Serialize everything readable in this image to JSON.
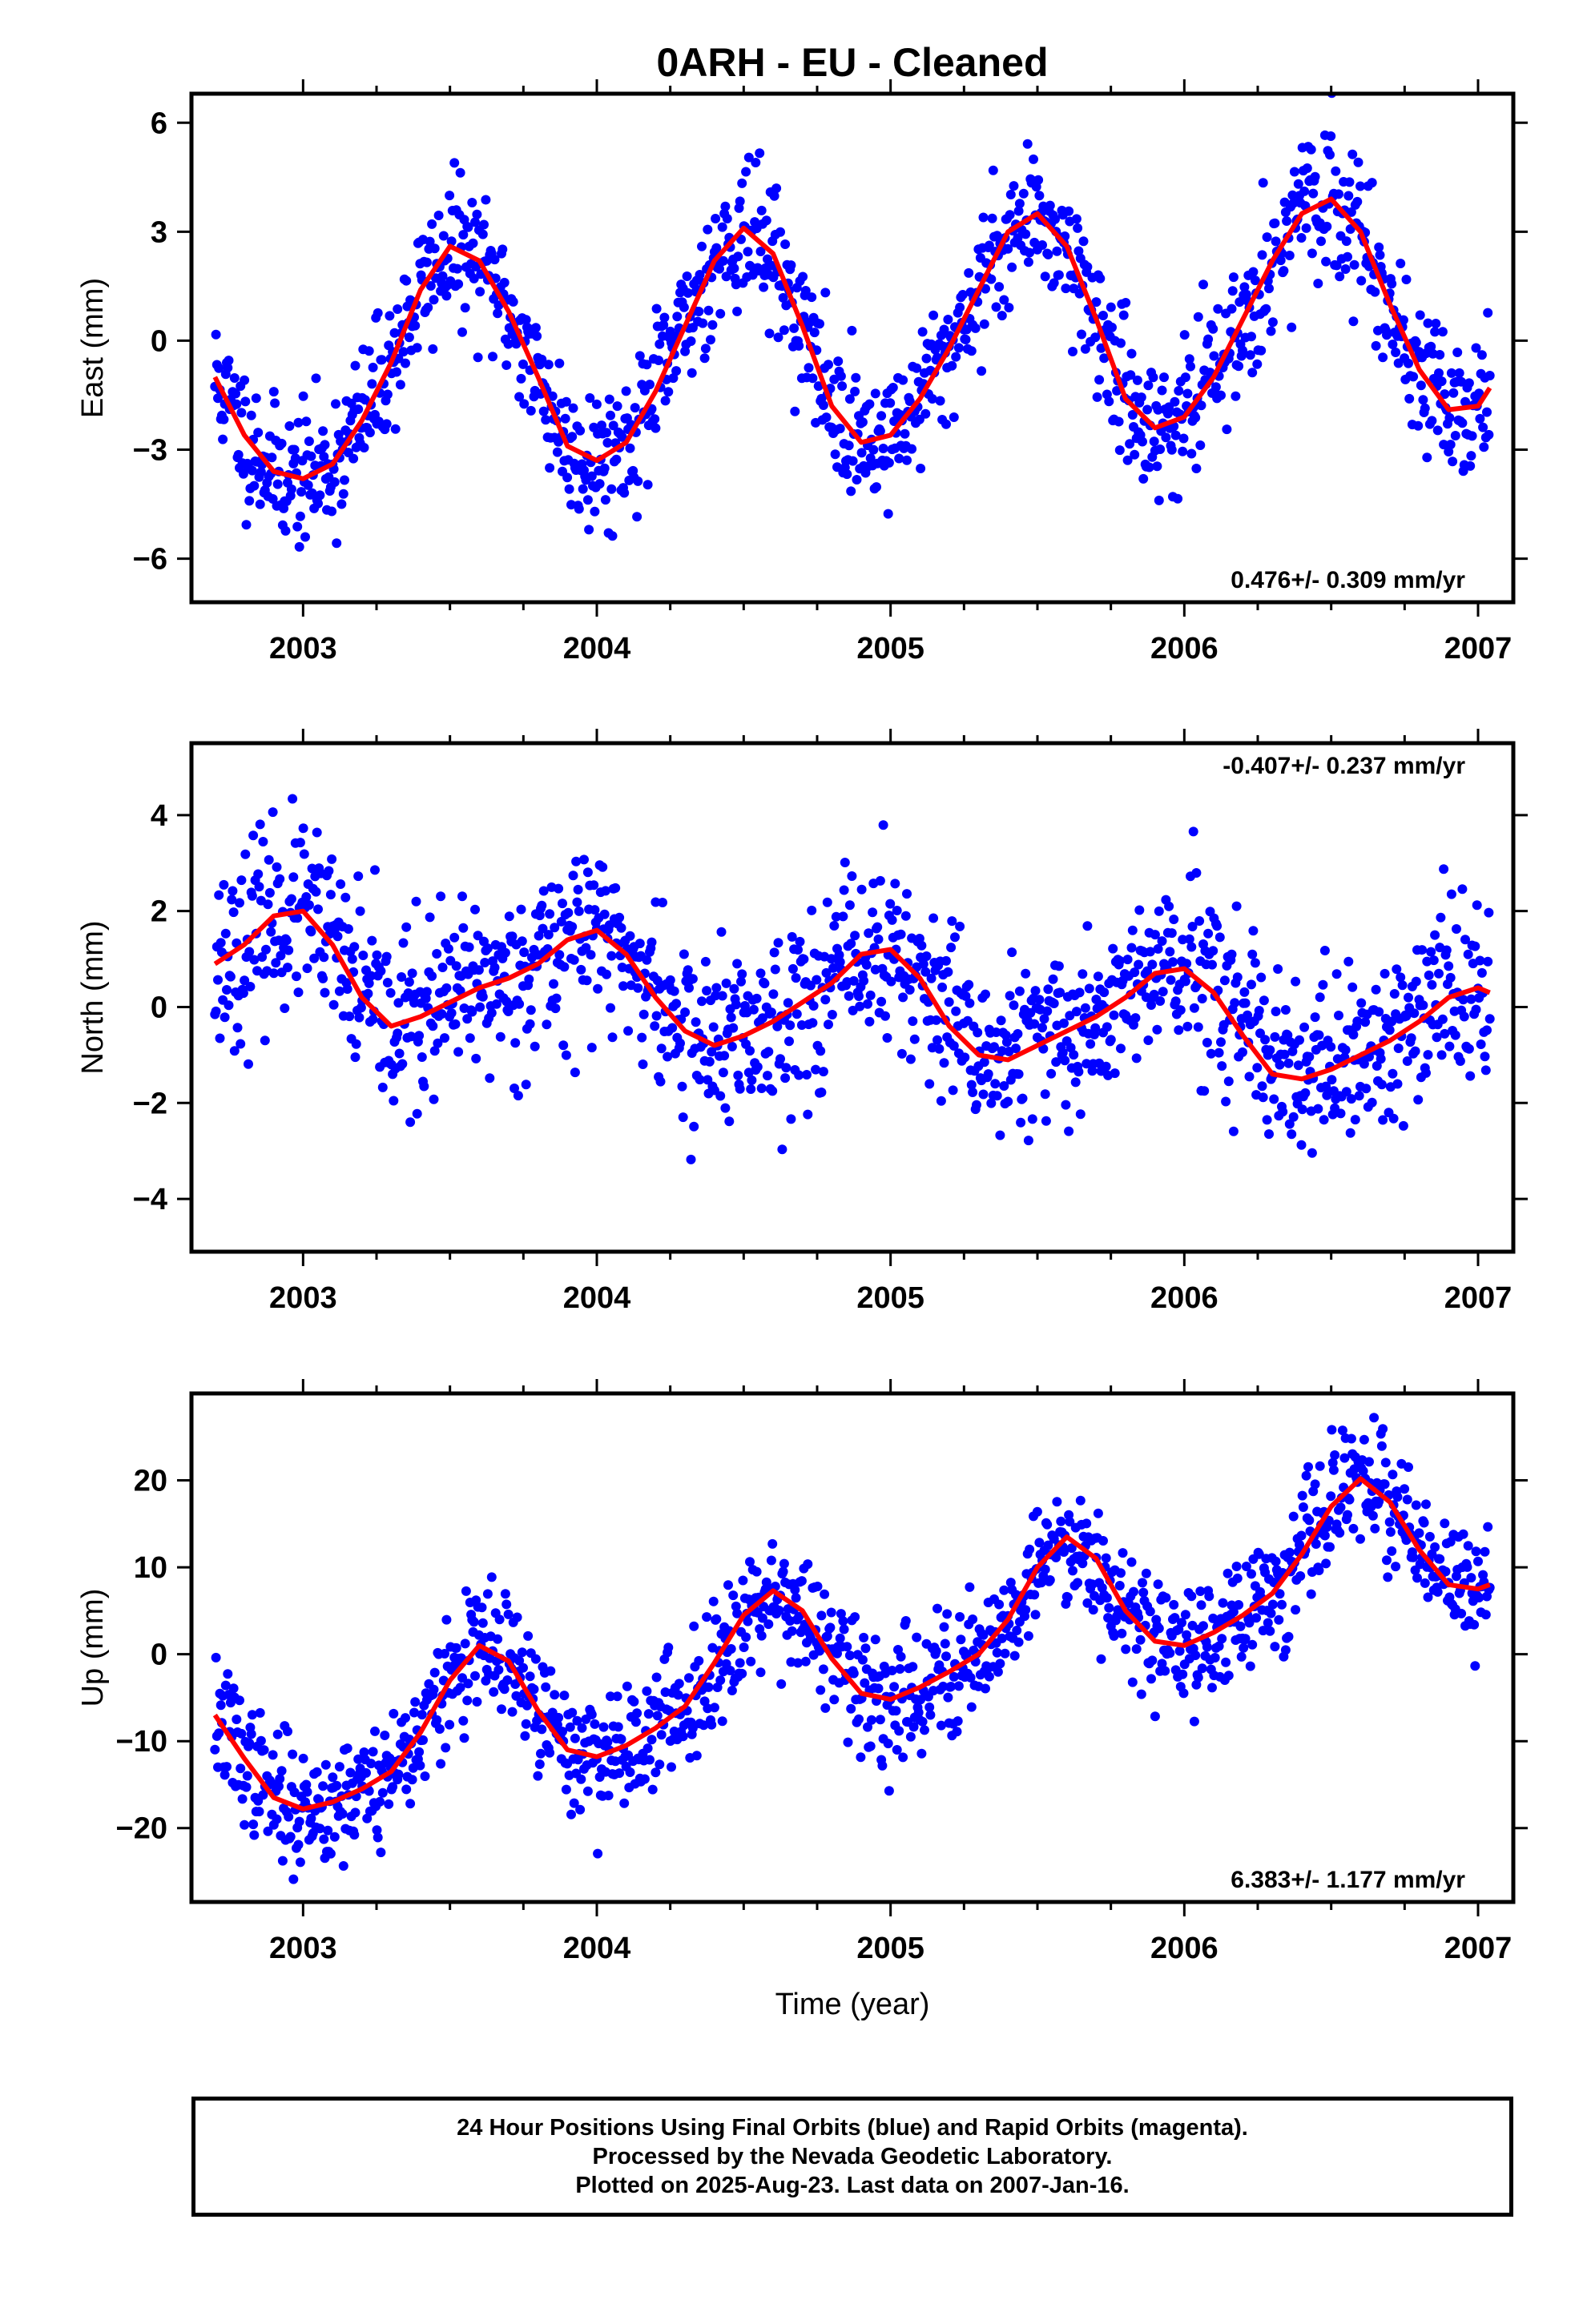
{
  "title": "0ARH  - EU - Cleaned",
  "footer": {
    "line1": "24 Hour Positions Using Final Orbits (blue) and Rapid Orbits (magenta).",
    "line2": "Processed by the Nevada Geodetic Laboratory.",
    "line3": "Plotted on 2025-Aug-23. Last data on 2007-Jan-16."
  },
  "colors": {
    "points": "#0000ff",
    "fit": "#ff0000",
    "frame": "#000000"
  },
  "chart_data": [
    {
      "type": "scatter",
      "ylabel": "East (mm)",
      "xlabel": "",
      "rate_label": "0.476+/- 0.309 mm/yr",
      "rate_position": "bottom-right",
      "xlim": [
        2002.62,
        2007.12
      ],
      "ylim": [
        -7.2,
        6.8
      ],
      "x_ticks": [
        2003,
        2004,
        2005,
        2006,
        2007
      ],
      "y_ticks": [
        6,
        3,
        0,
        -3,
        -6
      ],
      "y_tick_labels": [
        "6",
        "3",
        "0",
        "−3",
        "−6"
      ],
      "grid": false,
      "fit_curve": [
        [
          2002.7,
          -1.0
        ],
        [
          2002.8,
          -2.6
        ],
        [
          2002.9,
          -3.6
        ],
        [
          2003.0,
          -3.8
        ],
        [
          2003.1,
          -3.4
        ],
        [
          2003.2,
          -2.2
        ],
        [
          2003.3,
          -0.6
        ],
        [
          2003.4,
          1.4
        ],
        [
          2003.5,
          2.6
        ],
        [
          2003.6,
          2.2
        ],
        [
          2003.7,
          0.8
        ],
        [
          2003.8,
          -1.0
        ],
        [
          2003.9,
          -2.9
        ],
        [
          2004.0,
          -3.3
        ],
        [
          2004.1,
          -2.8
        ],
        [
          2004.2,
          -1.4
        ],
        [
          2004.3,
          0.4
        ],
        [
          2004.4,
          2.2
        ],
        [
          2004.5,
          3.1
        ],
        [
          2004.6,
          2.4
        ],
        [
          2004.7,
          0.4
        ],
        [
          2004.8,
          -1.8
        ],
        [
          2004.9,
          -2.8
        ],
        [
          2005.0,
          -2.6
        ],
        [
          2005.1,
          -1.6
        ],
        [
          2005.2,
          -0.2
        ],
        [
          2005.3,
          1.4
        ],
        [
          2005.4,
          3.0
        ],
        [
          2005.5,
          3.5
        ],
        [
          2005.6,
          2.6
        ],
        [
          2005.7,
          0.6
        ],
        [
          2005.8,
          -1.6
        ],
        [
          2005.9,
          -2.4
        ],
        [
          2006.0,
          -2.1
        ],
        [
          2006.1,
          -1.0
        ],
        [
          2006.2,
          0.6
        ],
        [
          2006.3,
          2.2
        ],
        [
          2006.4,
          3.5
        ],
        [
          2006.5,
          3.9
        ],
        [
          2006.6,
          3.0
        ],
        [
          2006.7,
          1.0
        ],
        [
          2006.8,
          -0.8
        ],
        [
          2006.9,
          -1.9
        ],
        [
          2007.0,
          -1.8
        ],
        [
          2007.04,
          -1.3
        ]
      ],
      "scatter_model": {
        "x_start": 2002.7,
        "x_end": 2007.04,
        "count": 1300,
        "scatter_sd": 0.95,
        "seed": 11
      }
    },
    {
      "type": "scatter",
      "ylabel": "North (mm)",
      "xlabel": "",
      "rate_label": "-0.407+/- 0.237 mm/yr",
      "rate_position": "top-right",
      "xlim": [
        2002.62,
        2007.12
      ],
      "ylim": [
        -5.1,
        5.5
      ],
      "x_ticks": [
        2003,
        2004,
        2005,
        2006,
        2007
      ],
      "y_ticks": [
        4,
        2,
        0,
        -2,
        -4
      ],
      "y_tick_labels": [
        "4",
        "2",
        "0",
        "−2",
        "−4"
      ],
      "grid": false,
      "fit_curve": [
        [
          2002.7,
          0.9
        ],
        [
          2002.8,
          1.3
        ],
        [
          2002.9,
          1.9
        ],
        [
          2003.0,
          2.0
        ],
        [
          2003.1,
          1.3
        ],
        [
          2003.2,
          0.2
        ],
        [
          2003.3,
          -0.4
        ],
        [
          2003.4,
          -0.2
        ],
        [
          2003.5,
          0.1
        ],
        [
          2003.6,
          0.4
        ],
        [
          2003.7,
          0.6
        ],
        [
          2003.8,
          0.9
        ],
        [
          2003.9,
          1.4
        ],
        [
          2004.0,
          1.6
        ],
        [
          2004.1,
          1.1
        ],
        [
          2004.2,
          0.2
        ],
        [
          2004.3,
          -0.5
        ],
        [
          2004.4,
          -0.8
        ],
        [
          2004.5,
          -0.6
        ],
        [
          2004.6,
          -0.3
        ],
        [
          2004.7,
          0.1
        ],
        [
          2004.8,
          0.5
        ],
        [
          2004.9,
          1.1
        ],
        [
          2005.0,
          1.2
        ],
        [
          2005.1,
          0.6
        ],
        [
          2005.2,
          -0.4
        ],
        [
          2005.3,
          -1.0
        ],
        [
          2005.4,
          -1.1
        ],
        [
          2005.5,
          -0.8
        ],
        [
          2005.6,
          -0.5
        ],
        [
          2005.7,
          -0.2
        ],
        [
          2005.8,
          0.2
        ],
        [
          2005.9,
          0.7
        ],
        [
          2006.0,
          0.8
        ],
        [
          2006.1,
          0.3
        ],
        [
          2006.2,
          -0.6
        ],
        [
          2006.3,
          -1.4
        ],
        [
          2006.4,
          -1.5
        ],
        [
          2006.5,
          -1.3
        ],
        [
          2006.6,
          -1.0
        ],
        [
          2006.7,
          -0.7
        ],
        [
          2006.8,
          -0.3
        ],
        [
          2006.9,
          0.2
        ],
        [
          2007.0,
          0.4
        ],
        [
          2007.04,
          0.3
        ]
      ],
      "scatter_model": {
        "x_start": 2002.7,
        "x_end": 2007.04,
        "count": 1300,
        "scatter_sd": 0.95,
        "seed": 23
      }
    },
    {
      "type": "scatter",
      "ylabel": "Up (mm)",
      "xlabel": "Time (year)",
      "rate_label": "6.383+/- 1.177 mm/yr",
      "rate_position": "bottom-right",
      "xlim": [
        2002.62,
        2007.12
      ],
      "ylim": [
        -28.5,
        30
      ],
      "x_ticks": [
        2003,
        2004,
        2005,
        2006,
        2007
      ],
      "y_ticks": [
        20,
        10,
        0,
        -10,
        -20
      ],
      "y_tick_labels": [
        "20",
        "10",
        "0",
        "−10",
        "−20"
      ],
      "grid": false,
      "fit_curve": [
        [
          2002.7,
          -7.0
        ],
        [
          2002.8,
          -12.0
        ],
        [
          2002.9,
          -16.5
        ],
        [
          2003.0,
          -17.8
        ],
        [
          2003.1,
          -17.0
        ],
        [
          2003.2,
          -15.5
        ],
        [
          2003.3,
          -13.5
        ],
        [
          2003.4,
          -9.0
        ],
        [
          2003.5,
          -3.0
        ],
        [
          2003.6,
          1.0
        ],
        [
          2003.7,
          -0.8
        ],
        [
          2003.8,
          -6.5
        ],
        [
          2003.9,
          -11.0
        ],
        [
          2004.0,
          -11.8
        ],
        [
          2004.1,
          -10.5
        ],
        [
          2004.2,
          -8.5
        ],
        [
          2004.3,
          -6.0
        ],
        [
          2004.4,
          -1.0
        ],
        [
          2004.5,
          4.5
        ],
        [
          2004.6,
          7.3
        ],
        [
          2004.7,
          5.0
        ],
        [
          2004.8,
          -0.5
        ],
        [
          2004.9,
          -4.5
        ],
        [
          2005.0,
          -5.2
        ],
        [
          2005.1,
          -3.8
        ],
        [
          2005.2,
          -2.0
        ],
        [
          2005.3,
          0.0
        ],
        [
          2005.4,
          4.0
        ],
        [
          2005.5,
          10.0
        ],
        [
          2005.6,
          13.5
        ],
        [
          2005.7,
          11.0
        ],
        [
          2005.8,
          5.0
        ],
        [
          2005.9,
          1.5
        ],
        [
          2006.0,
          1.0
        ],
        [
          2006.1,
          2.5
        ],
        [
          2006.2,
          4.5
        ],
        [
          2006.3,
          7.0
        ],
        [
          2006.4,
          11.5
        ],
        [
          2006.5,
          17.0
        ],
        [
          2006.6,
          20.2
        ],
        [
          2006.7,
          17.5
        ],
        [
          2006.8,
          12.0
        ],
        [
          2006.9,
          8.0
        ],
        [
          2007.0,
          7.5
        ],
        [
          2007.04,
          8.0
        ]
      ],
      "scatter_model": {
        "x_start": 2002.7,
        "x_end": 2007.04,
        "count": 1300,
        "scatter_sd": 3.6,
        "seed": 37
      }
    }
  ]
}
